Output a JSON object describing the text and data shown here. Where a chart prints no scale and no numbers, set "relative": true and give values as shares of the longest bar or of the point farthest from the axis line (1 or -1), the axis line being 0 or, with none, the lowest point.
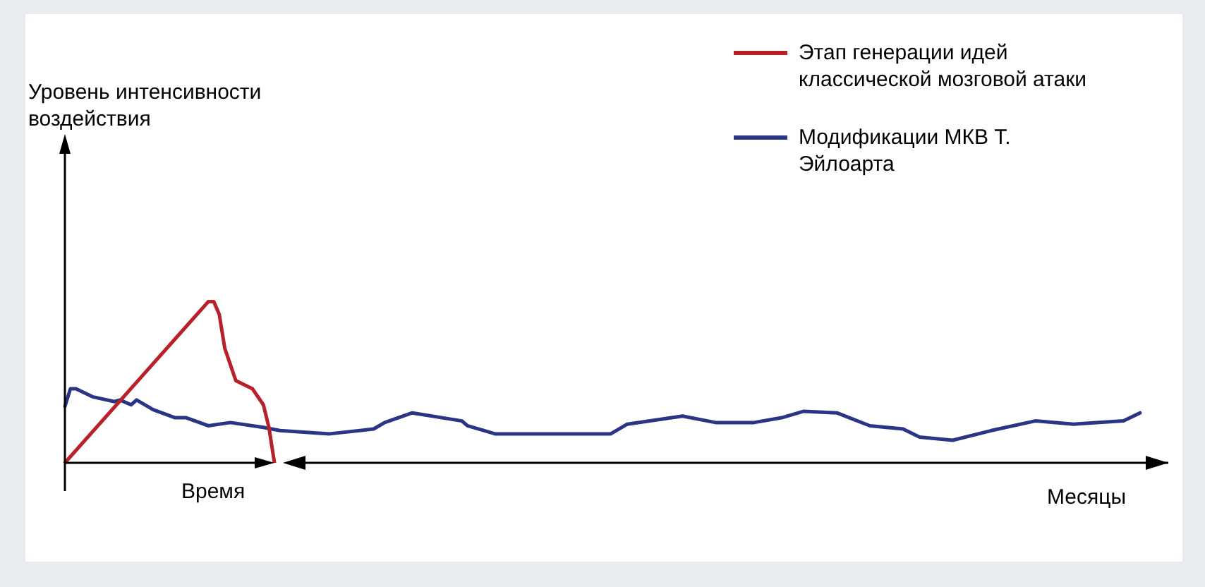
{
  "chart_data": {
    "type": "line",
    "relative": true,
    "xlabel": "Время",
    "annotations": [
      "Уровень интенсивности воздействия",
      "Месяцы"
    ],
    "legend": "top right",
    "marker": "none",
    "line_style": "solid",
    "categories": [
      null,
      null,
      null,
      null,
      null,
      null,
      null,
      null,
      null,
      null,
      null,
      null,
      null,
      null,
      null,
      null,
      null,
      null,
      null,
      null,
      null,
      null,
      null,
      null,
      null,
      null,
      null,
      null,
      null,
      null,
      null,
      null,
      null,
      null,
      null,
      null,
      null,
      null,
      null,
      null,
      null,
      null,
      null,
      null,
      null,
      null,
      null,
      null,
      null,
      null,
      null,
      null,
      null,
      null,
      null,
      null,
      null,
      null,
      null,
      null,
      null,
      null,
      null,
      null,
      null,
      null,
      null,
      null,
      null,
      null,
      null,
      null,
      null,
      null,
      null,
      null,
      null,
      null,
      null,
      null,
      null,
      null,
      null,
      null,
      null,
      null,
      null,
      null,
      null,
      null,
      null,
      null,
      null,
      null,
      null,
      null,
      null,
      null,
      null,
      null,
      null,
      null,
      null,
      null,
      null,
      null,
      null,
      null,
      null,
      null,
      null,
      null,
      null,
      null,
      null,
      null,
      null,
      null,
      null,
      null,
      null,
      null,
      null,
      null,
      null,
      null,
      null,
      null,
      null,
      null,
      null,
      null,
      null,
      null,
      null,
      null,
      null,
      null,
      null,
      null,
      null,
      null,
      null,
      null,
      null,
      null,
      null,
      null,
      null,
      null,
      null,
      null,
      null,
      null,
      null,
      null,
      null,
      null,
      null,
      null,
      null,
      null,
      null,
      null,
      null,
      null,
      null,
      null,
      null,
      null,
      null,
      null,
      null,
      null,
      null,
      null,
      null,
      null,
      null,
      null,
      null,
      null,
      null,
      null,
      null,
      null,
      null,
      null,
      null,
      null,
      null,
      null,
      null,
      null,
      null,
      null
    ],
    "series": [
      {
        "name": "Этап генерации идей классической мозговой атаки",
        "color": "#b8202a",
        "values": [
          0,
          null,
          null,
          null,
          null,
          null,
          null,
          null,
          null,
          null,
          null,
          null,
          null,
          null,
          null,
          null,
          null,
          null,
          null,
          null,
          null,
          null,
          null,
          null,
          null,
          null,
          1,
          1,
          0.92,
          0.71,
          null,
          0.51,
          null,
          null,
          0.46,
          null,
          0.36,
          0.22,
          0,
          null,
          null,
          null,
          null,
          null,
          null,
          null,
          null,
          null,
          null,
          null,
          null,
          null,
          null,
          null,
          null,
          null,
          null,
          null,
          null,
          null,
          null,
          null,
          null,
          null,
          null,
          null,
          null,
          null,
          null,
          null,
          null,
          null,
          null,
          null,
          null,
          null,
          null,
          null,
          null,
          null,
          null,
          null,
          null,
          null,
          null,
          null,
          null,
          null,
          null,
          null,
          null,
          null,
          null,
          null,
          null,
          null,
          null,
          null,
          null,
          null,
          null,
          null,
          null,
          null,
          null,
          null,
          null,
          null,
          null,
          null,
          null,
          null,
          null,
          null,
          null,
          null,
          null,
          null,
          null,
          null,
          null,
          null,
          null,
          null,
          null,
          null,
          null,
          null,
          null,
          null,
          null,
          null,
          null,
          null,
          null,
          null,
          null,
          null,
          null,
          null,
          null,
          null,
          null,
          null,
          null,
          null,
          null,
          null,
          null,
          null,
          null,
          null,
          null,
          null,
          null,
          null,
          null,
          null,
          null,
          null,
          null,
          null,
          null,
          null,
          null,
          null,
          null,
          null,
          null,
          null,
          null,
          null,
          null,
          null,
          null,
          null,
          null,
          null,
          null,
          null,
          null,
          null,
          null,
          null,
          null,
          null,
          null,
          null,
          null,
          null,
          null,
          null,
          null,
          null,
          null,
          null
        ]
      },
      {
        "name": "Модификации МКВ Т. Эйлоарта",
        "color": "#2b3585",
        "values": [
          0.35,
          0.46,
          0.46,
          null,
          null,
          0.41,
          null,
          null,
          null,
          0.38,
          0.39,
          null,
          0.36,
          0.39,
          null,
          null,
          0.33,
          null,
          null,
          null,
          0.28,
          null,
          0.28,
          null,
          null,
          null,
          0.23,
          null,
          null,
          null,
          0.25,
          null,
          null,
          null,
          null,
          null,
          0.22,
          null,
          null,
          0.2,
          null,
          null,
          null,
          null,
          null,
          null,
          null,
          null,
          0.18,
          null,
          null,
          null,
          null,
          null,
          null,
          null,
          0.21,
          null,
          0.25,
          null,
          null,
          null,
          null,
          0.31,
          null,
          null,
          null,
          null,
          null,
          null,
          null,
          null,
          0.26,
          0.23,
          null,
          null,
          null,
          null,
          0.18,
          null,
          null,
          null,
          null,
          null,
          null,
          null,
          0.18,
          null,
          null,
          null,
          null,
          null,
          null,
          null,
          null,
          null,
          null,
          null,
          null,
          0.18,
          null,
          null,
          0.24,
          null,
          null,
          null,
          null,
          null,
          null,
          null,
          null,
          null,
          0.29,
          null,
          null,
          null,
          null,
          null,
          0.25,
          null,
          null,
          null,
          null,
          null,
          null,
          0.25,
          null,
          null,
          null,
          null,
          0.28,
          null,
          null,
          null,
          0.32,
          null,
          null,
          null,
          null,
          null,
          0.31,
          null,
          null,
          null,
          null,
          null,
          0.23,
          null,
          null,
          null,
          null,
          null,
          0.21,
          null,
          null,
          0.16,
          null,
          null,
          null,
          null,
          null,
          0.14,
          null,
          null,
          null,
          null,
          null,
          null,
          0.2,
          null,
          null,
          null,
          null,
          null,
          null,
          null,
          0.26,
          null,
          null,
          null,
          null,
          null,
          null,
          0.24,
          null,
          null,
          null,
          null,
          null,
          null,
          null,
          null,
          0.26,
          null,
          null,
          0.31
        ]
      }
    ]
  }
}
